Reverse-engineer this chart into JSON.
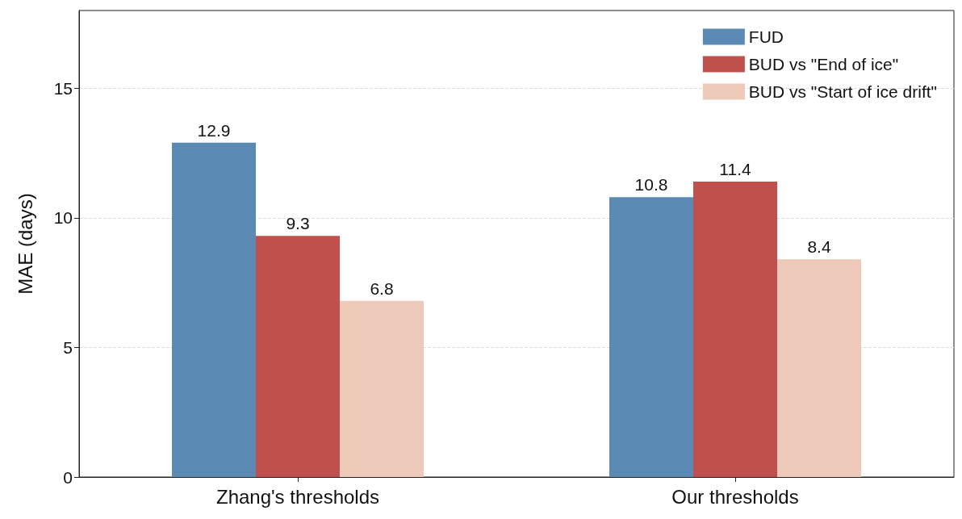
{
  "chart_data": {
    "type": "bar",
    "ylabel": "MAE (days)",
    "categories": [
      "Zhang's thresholds",
      "Our thresholds"
    ],
    "series": [
      {
        "name": "FUD",
        "color": "#5b8bb4",
        "values": [
          12.9,
          10.8
        ]
      },
      {
        "name": "BUD vs \"End of ice\"",
        "color": "#c0504e",
        "values": [
          9.3,
          11.4
        ]
      },
      {
        "name": "BUD vs \"Start of ice drift\"",
        "color": "#ecc9b9",
        "values": [
          6.8,
          8.4
        ]
      }
    ],
    "ylim": [
      0,
      18
    ],
    "yticks": [
      0,
      5,
      10,
      15
    ],
    "grid": "y",
    "legend": "top right",
    "data_labels": true
  }
}
